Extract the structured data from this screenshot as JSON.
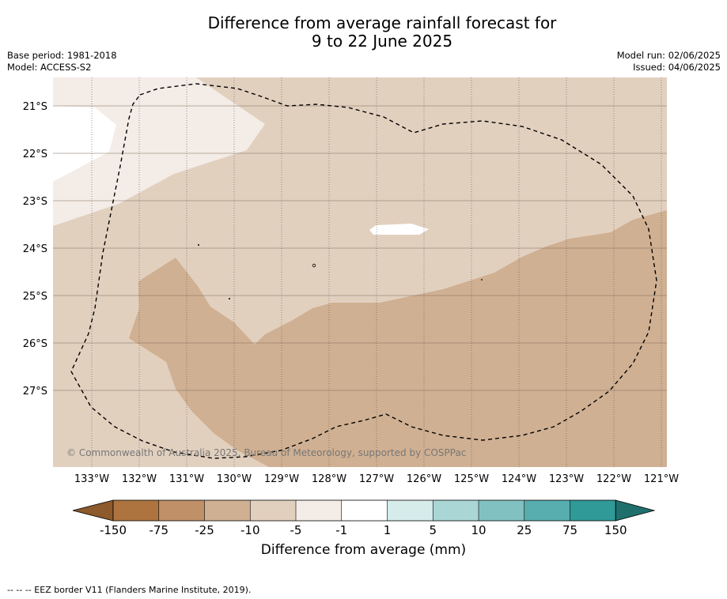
{
  "title_line1": "Difference from average rainfall forecast for",
  "title_line2": "9 to 22 June 2025",
  "base_period": "Base period: 1981-2018",
  "model": "Model: ACCESS-S2",
  "model_run": "Model run: 02/06/2025",
  "issued": "Issued: 04/06/2025",
  "copyright": "© Commonwealth of Australia 2025, Bureau of Meteorology, supported by COSPPac",
  "lon_labels": [
    "133°W",
    "132°W",
    "131°W",
    "130°W",
    "129°W",
    "128°W",
    "127°W",
    "126°W",
    "125°W",
    "124°W",
    "123°W",
    "122°W",
    "121°W"
  ],
  "lat_labels": [
    "21°S",
    "22°S",
    "23°S",
    "24°S",
    "25°S",
    "26°S",
    "27°S"
  ],
  "colorbar": {
    "title": "Difference from average (mm)",
    "ticks": [
      "-150",
      "-75",
      "-25",
      "-10",
      "-5",
      "-1",
      "1",
      "5",
      "10",
      "25",
      "75",
      "150"
    ],
    "colors": [
      "#8c5a2c",
      "#ad7440",
      "#c09068",
      "#d0b092",
      "#e2d0bf",
      "#f4ece6",
      "#ffffff",
      "#d5eceb",
      "#abd6d6",
      "#82c1c1",
      "#58aeae",
      "#2f9a98",
      "#1f6f6d"
    ]
  },
  "legend_line": "-- -- -- EEZ border V11 (Flanders Marine Institute, 2019).",
  "colors": {
    "map_dark": "#d0b092",
    "map_mid": "#e2d0bf",
    "map_light": "#f4ece6",
    "map_white": "#ffffff"
  }
}
